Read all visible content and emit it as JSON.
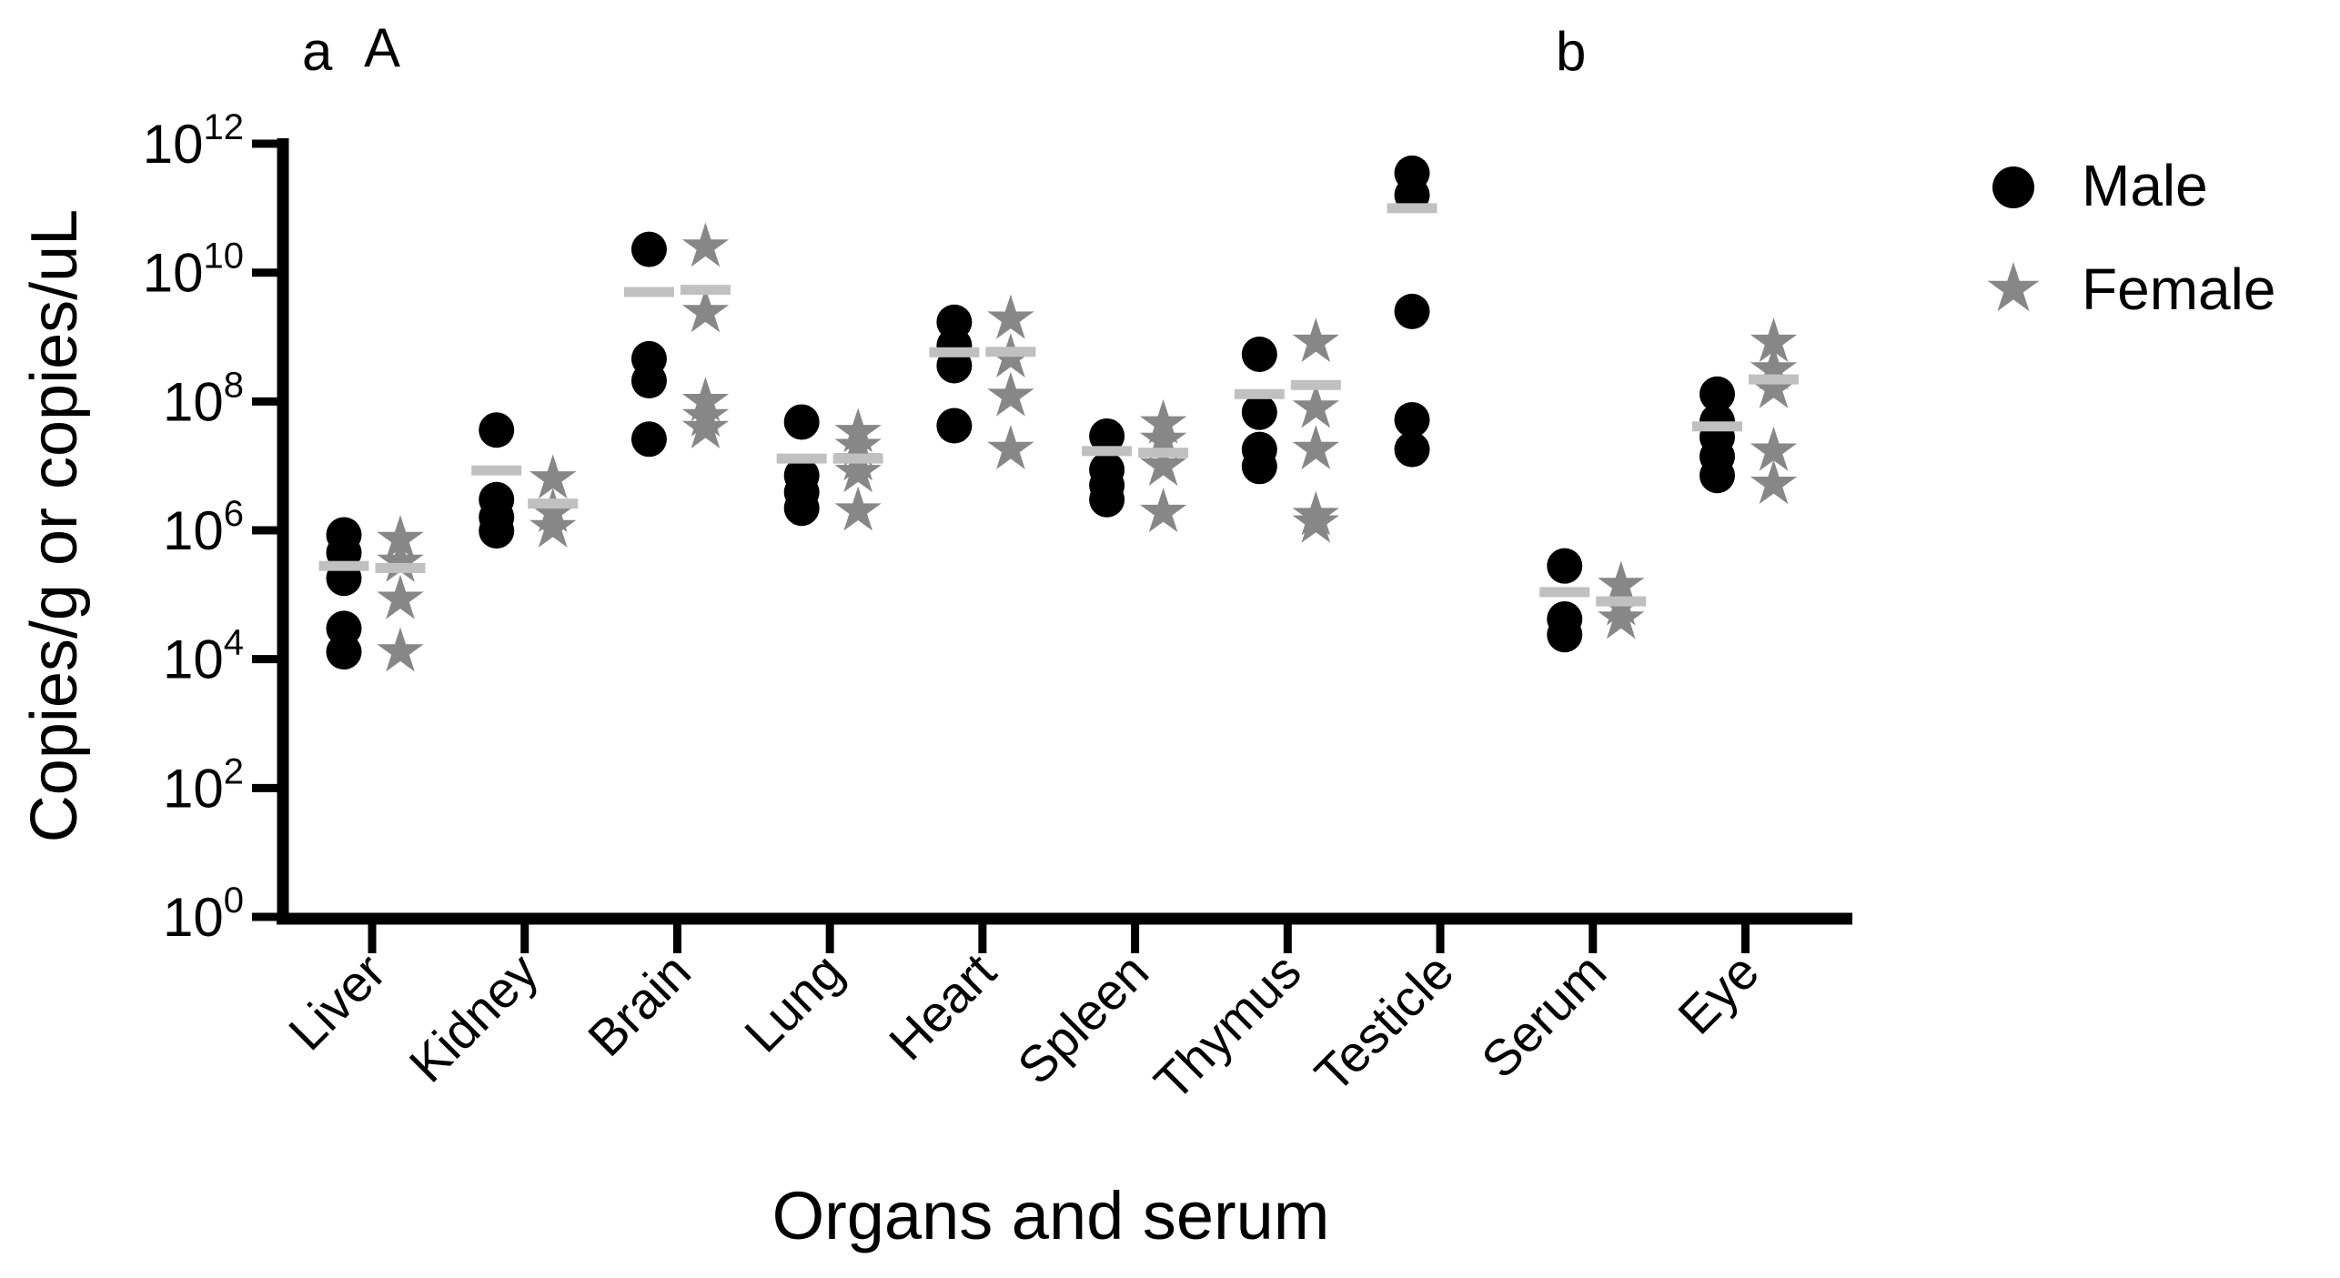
{
  "figure": {
    "panel_labels": {
      "primary_lower": "a",
      "primary_upper": "A",
      "secondary": "b"
    }
  },
  "axes": {
    "x_title": "Organs and serum",
    "y_title": "Copies/g or copies/uL",
    "y_tick_base": "10",
    "y_tick_exponents": [
      0,
      2,
      4,
      6,
      8,
      10,
      12
    ]
  },
  "legend": {
    "items": [
      {
        "label": "Male",
        "marker": "circle",
        "color": "#000000"
      },
      {
        "label": "Female",
        "marker": "star",
        "color": "#878787"
      }
    ]
  },
  "colors": {
    "marker_male": "#000000",
    "marker_female": "#878787",
    "median_bar": "#c0c0c0",
    "axis": "#000000",
    "background": "#ffffff"
  },
  "chart_data": {
    "type": "scatter",
    "title": "",
    "xlabel": "Organs and serum",
    "ylabel": "Copies/g or copies/uL",
    "y_scale": "log10",
    "ylim": [
      1,
      1000000000000.0
    ],
    "grid": false,
    "legend_position": "right",
    "categories": [
      "Liver",
      "Kidney",
      "Brain",
      "Lung",
      "Heart",
      "Spleen",
      "Thymus",
      "Testicle",
      "Serum",
      "Eye"
    ],
    "series": [
      {
        "name": "Male",
        "marker": "circle",
        "color": "#000000",
        "values": [
          [
            850000,
            450000,
            180000,
            30000,
            13000
          ],
          [
            36000000,
            3000000,
            1600000,
            980000
          ],
          [
            23000000000.0,
            460000000.0,
            210000000.0,
            26000000.0
          ],
          [
            48000000.0,
            7100000.0,
            3900000.0,
            2200000.0
          ],
          [
            1700000000.0,
            740000000.0,
            360000000.0,
            42000000.0
          ],
          [
            29000000.0,
            8700000.0,
            5000000.0,
            3000000.0
          ],
          [
            540000000.0,
            68000000.0,
            18000000.0,
            9800000.0
          ],
          [
            350000000000.0,
            160000000000.0,
            2500000000.0,
            52000000.0,
            18000000.0
          ],
          [
            280000,
            42000,
            24000
          ],
          [
            130000000.0,
            49000000.0,
            28000000.0,
            14000000.0,
            7100000.0
          ]
        ],
        "medians": [
          280000,
          8500000,
          5000000000.0,
          13000000.0,
          580000000.0,
          17000000.0,
          130000000.0,
          100000000000.0,
          110000,
          41000000.0
        ]
      },
      {
        "name": "Female",
        "marker": "star",
        "color": "#878787",
        "values": [
          [
            720000,
            320000,
            85000,
            13000
          ],
          [
            6300000,
            1900000,
            1100000
          ],
          [
            25000000000.0,
            2400000000.0,
            100000000.0,
            58000000.0,
            38000000.0
          ],
          [
            33000000.0,
            20000000.0,
            12000000.0,
            7900000.0,
            2000000.0
          ],
          [
            1900000000.0,
            480000000.0,
            120000000.0,
            18000000.0
          ],
          [
            45000000.0,
            25000000.0,
            10000000.0,
            1900000.0
          ],
          [
            830000000.0,
            79000000.0,
            18000000.0,
            1700000.0,
            1300000.0
          ],
          [],
          [
            140000,
            68000,
            42000
          ],
          [
            830000000.0,
            310000000.0,
            160000000.0,
            17000000.0,
            5200000.0
          ]
        ],
        "medians": [
          260000,
          2600000,
          5400000000.0,
          13000000.0,
          590000000.0,
          16000000.0,
          180000000.0,
          null,
          79000,
          220000000.0
        ]
      }
    ]
  }
}
